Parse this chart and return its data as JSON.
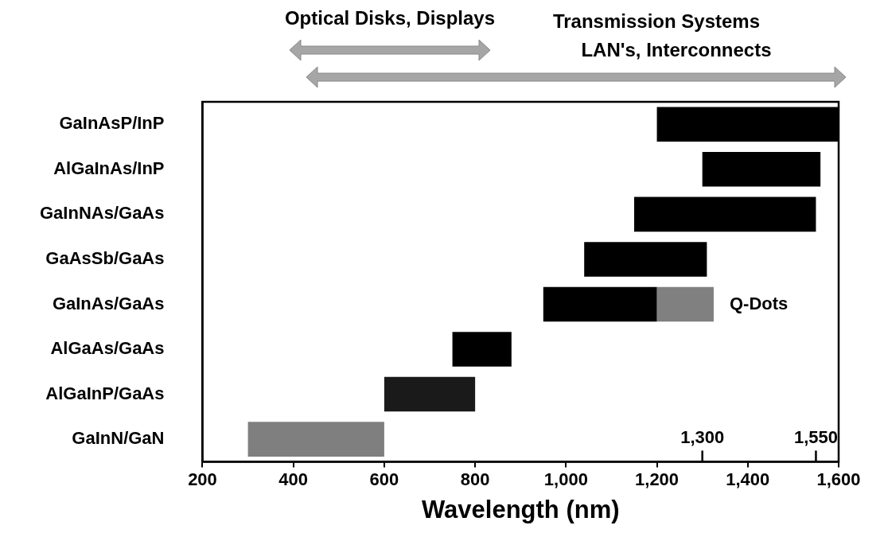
{
  "chart_data": {
    "type": "bar",
    "orientation": "horizontal",
    "xlabel": "Wavelength (nm)",
    "categories": [
      "GaInAsP/InP",
      "AlGaInAs/InP",
      "GaInNAs/GaAs",
      "GaAsSb/GaAs",
      "GaInAs/GaAs",
      "AlGaAs/GaAs",
      "AlGaInP/GaAs",
      "GaInN/GaN"
    ],
    "series": [
      {
        "colors": [
          "#000000",
          "#000000",
          "#000000",
          "#000000",
          "#000000",
          "#000000",
          "#1a1a1a",
          "#7f7f7f"
        ],
        "base": [
          1200,
          1300,
          1150,
          1040,
          950,
          750,
          600,
          300
        ],
        "values": [
          400,
          260,
          400,
          270,
          250,
          130,
          200,
          300
        ]
      },
      {
        "name": "Q-Dots",
        "color": "#808080",
        "base": [
          null,
          null,
          null,
          null,
          1200,
          null,
          null,
          null
        ],
        "values": [
          null,
          null,
          null,
          null,
          125,
          null,
          null,
          null
        ]
      }
    ],
    "xlim": [
      200,
      1600
    ],
    "xticks": [
      200,
      400,
      600,
      800,
      {
        "value": 1000,
        "label": "1,000"
      },
      {
        "value": 1200,
        "label": "1,200"
      },
      {
        "value": 1400,
        "label": "1,400"
      },
      {
        "value": 1600,
        "label": "1,600"
      }
    ],
    "x2lim": [
      200,
      1600
    ],
    "x2ticks": [
      {
        "value": 1300,
        "label": "1,300"
      },
      {
        "value": 1550,
        "label": "1,550"
      }
    ],
    "annotations": [
      "Optical Disks, Displays",
      "Transmission Systems",
      "LAN's, Interconnects"
    ],
    "grid": false,
    "legend": false
  }
}
